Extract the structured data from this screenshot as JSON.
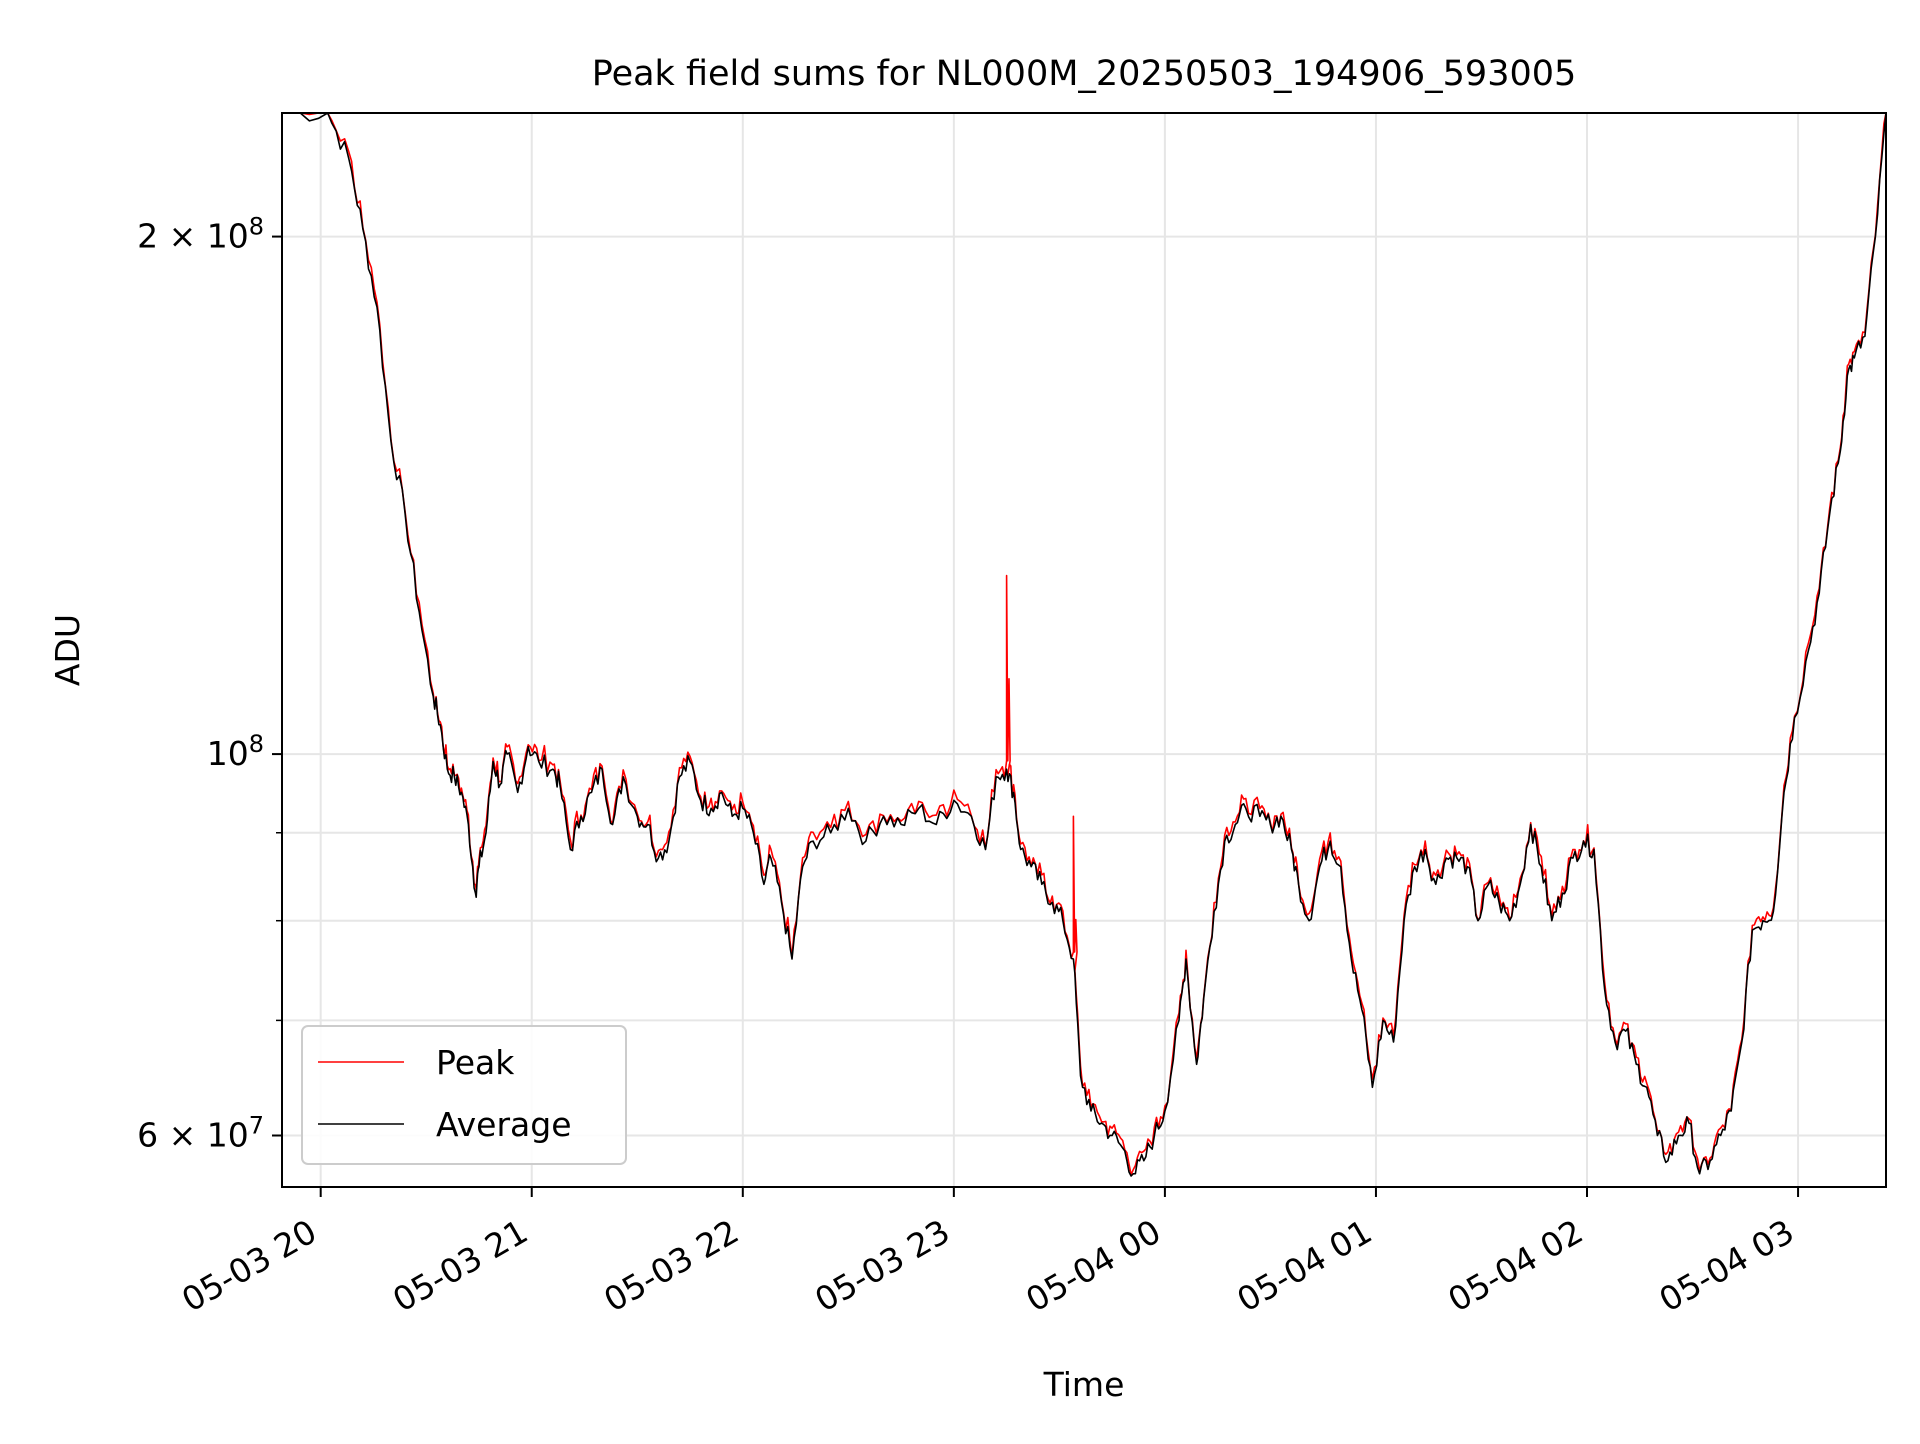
{
  "chart_data": {
    "type": "line",
    "title": "Peak field sums for NL000M_20250503_194906_593005",
    "xlabel": "Time",
    "ylabel": "ADU",
    "yscale": "log",
    "ylim": [
      56000000,
      236000000
    ],
    "xlim": [
      "2025-05-03 19:49",
      "2025-05-04 03:25"
    ],
    "x_ticks": [
      "2025-05-03 20:00",
      "2025-05-03 21:00",
      "2025-05-03 22:00",
      "2025-05-03 23:00",
      "2025-05-04 00:00",
      "2025-05-04 01:00",
      "2025-05-04 02:00",
      "2025-05-04 03:00"
    ],
    "x_tick_labels": [
      "05-03 20",
      "05-03 21",
      "05-03 22",
      "05-03 23",
      "05-04 00",
      "05-04 01",
      "05-04 02",
      "05-04 03"
    ],
    "y_major_ticks": [
      {
        "value": 60000000,
        "mantissa": "6",
        "exponent": "7",
        "times": "×",
        "base": "10"
      },
      {
        "value": 100000000,
        "mantissa": "",
        "exponent": "8",
        "times": "",
        "base": "10"
      },
      {
        "value": 200000000,
        "mantissa": "2",
        "exponent": "8",
        "times": "×",
        "base": "10"
      }
    ],
    "y_minor_ticks": [
      70000000,
      80000000,
      90000000
    ],
    "grid": true,
    "legend_position": "lower-left",
    "series": [
      {
        "name": "Peak",
        "color": "#ff0000",
        "spikes": [
          [
            "2025-05-03 23:15",
            127000000
          ],
          [
            "2025-05-03 23:34",
            92000000
          ]
        ]
      },
      {
        "name": "Average",
        "color": "#000000",
        "spikes": []
      }
    ],
    "x": [
      "2025-05-03 19:49",
      "2025-05-03 20:02",
      "2025-05-03 20:08",
      "2025-05-03 20:12",
      "2025-05-03 20:16",
      "2025-05-03 20:20",
      "2025-05-03 20:24",
      "2025-05-03 20:28",
      "2025-05-03 20:32",
      "2025-05-03 20:34",
      "2025-05-03 20:36",
      "2025-05-03 20:38",
      "2025-05-03 20:40",
      "2025-05-03 20:42",
      "2025-05-03 20:44",
      "2025-05-03 20:45",
      "2025-05-03 20:47",
      "2025-05-03 20:49",
      "2025-05-03 20:51",
      "2025-05-03 20:53",
      "2025-05-03 20:56",
      "2025-05-03 20:59",
      "2025-05-03 21:02",
      "2025-05-03 21:06",
      "2025-05-03 21:08",
      "2025-05-03 21:11",
      "2025-05-03 21:14",
      "2025-05-03 21:17",
      "2025-05-03 21:20",
      "2025-05-03 21:23",
      "2025-05-03 21:26",
      "2025-05-03 21:30",
      "2025-05-03 21:33",
      "2025-05-03 21:36",
      "2025-05-03 21:39",
      "2025-05-03 21:42",
      "2025-05-03 21:45",
      "2025-05-03 21:48",
      "2025-05-03 21:51",
      "2025-05-03 21:54",
      "2025-05-03 21:57",
      "2025-05-03 22:00",
      "2025-05-03 22:03",
      "2025-05-03 22:06",
      "2025-05-03 22:08",
      "2025-05-03 22:11",
      "2025-05-03 22:14",
      "2025-05-03 22:17",
      "2025-05-03 22:20",
      "2025-05-03 22:25",
      "2025-05-03 22:30",
      "2025-05-03 22:35",
      "2025-05-03 22:40",
      "2025-05-03 22:45",
      "2025-05-03 22:50",
      "2025-05-03 22:55",
      "2025-05-03 23:00",
      "2025-05-03 23:05",
      "2025-05-03 23:09",
      "2025-05-03 23:12",
      "2025-05-03 23:15",
      "2025-05-03 23:17",
      "2025-05-03 23:19",
      "2025-05-03 23:22",
      "2025-05-03 23:25",
      "2025-05-03 23:28",
      "2025-05-03 23:31",
      "2025-05-03 23:34",
      "2025-05-03 23:36",
      "2025-05-03 23:39",
      "2025-05-03 23:42",
      "2025-05-03 23:45",
      "2025-05-03 23:48",
      "2025-05-03 23:51",
      "2025-05-03 23:54",
      "2025-05-03 23:57",
      "2025-05-04 00:00",
      "2025-05-04 00:04",
      "2025-05-04 00:06",
      "2025-05-04 00:09",
      "2025-05-04 00:11",
      "2025-05-04 00:14",
      "2025-05-04 00:17",
      "2025-05-04 00:20",
      "2025-05-04 00:23",
      "2025-05-04 00:27",
      "2025-05-04 00:30",
      "2025-05-04 00:33",
      "2025-05-04 00:36",
      "2025-05-04 00:38",
      "2025-05-04 00:41",
      "2025-05-04 00:44",
      "2025-05-04 00:47",
      "2025-05-04 00:50",
      "2025-05-04 00:53",
      "2025-05-04 00:56",
      "2025-05-04 00:59",
      "2025-05-04 01:02",
      "2025-05-04 01:05",
      "2025-05-04 01:08",
      "2025-05-04 01:11",
      "2025-05-04 01:14",
      "2025-05-04 01:17",
      "2025-05-04 01:20",
      "2025-05-04 01:23",
      "2025-05-04 01:26",
      "2025-05-04 01:29",
      "2025-05-04 01:32",
      "2025-05-04 01:35",
      "2025-05-04 01:38",
      "2025-05-04 01:41",
      "2025-05-04 01:44",
      "2025-05-04 01:47",
      "2025-05-04 01:50",
      "2025-05-04 01:53",
      "2025-05-04 01:56",
      "2025-05-04 01:59",
      "2025-05-04 02:02",
      "2025-05-04 02:05",
      "2025-05-04 02:08",
      "2025-05-04 02:11",
      "2025-05-04 02:14",
      "2025-05-04 02:17",
      "2025-05-04 02:20",
      "2025-05-04 02:23",
      "2025-05-04 02:26",
      "2025-05-04 02:29",
      "2025-05-04 02:32",
      "2025-05-04 02:35",
      "2025-05-04 02:38",
      "2025-05-04 02:41",
      "2025-05-04 02:44",
      "2025-05-04 02:47",
      "2025-05-04 02:50",
      "2025-05-04 02:53",
      "2025-05-04 02:56",
      "2025-05-04 02:59",
      "2025-05-04 03:03",
      "2025-05-04 03:06",
      "2025-05-04 03:09",
      "2025-05-04 03:12",
      "2025-05-04 03:14",
      "2025-05-04 03:16",
      "2025-05-04 03:19",
      "2025-05-04 03:22",
      "2025-05-04 03:25"
    ],
    "y": [
      236000000,
      236000000,
      222000000,
      202000000,
      182000000,
      152000000,
      138000000,
      121000000,
      108000000,
      104000000,
      98000000,
      97000000,
      95000000,
      91000000,
      83000000,
      86000000,
      90000000,
      99000000,
      96000000,
      100000000,
      95000000,
      101000000,
      99000000,
      98000000,
      96000000,
      88000000,
      92000000,
      95000000,
      98000000,
      91000000,
      97000000,
      92000000,
      91000000,
      87000000,
      89000000,
      97000000,
      99000000,
      94000000,
      93000000,
      95000000,
      92000000,
      93000000,
      90000000,
      84000000,
      87000000,
      82000000,
      76000000,
      86000000,
      89000000,
      90000000,
      93000000,
      89000000,
      92000000,
      91000000,
      93000000,
      91000000,
      94000000,
      92000000,
      88000000,
      97000000,
      98000000,
      95000000,
      88000000,
      86000000,
      84000000,
      82000000,
      80000000,
      76000000,
      65000000,
      62000000,
      61000000,
      60000000,
      59000000,
      57000000,
      58000000,
      60000000,
      62000000,
      70000000,
      76000000,
      66000000,
      72000000,
      81000000,
      89000000,
      91000000,
      93000000,
      92000000,
      91000000,
      92000000,
      88000000,
      84000000,
      80000000,
      86000000,
      89000000,
      86000000,
      76000000,
      71000000,
      64000000,
      70000000,
      68000000,
      80000000,
      86000000,
      88000000,
      84000000,
      87000000,
      87000000,
      86000000,
      80000000,
      84000000,
      82000000,
      80000000,
      84000000,
      91000000,
      86000000,
      80000000,
      83000000,
      87000000,
      89000000,
      88000000,
      73000000,
      68000000,
      69000000,
      66000000,
      64000000,
      60000000,
      58000000,
      60000000,
      61000000,
      57000000,
      58000000,
      60000000,
      62000000,
      68000000,
      79000000,
      80000000,
      81000000,
      95000000,
      105000000,
      115000000,
      124000000,
      138000000,
      150000000,
      166000000,
      170000000,
      175000000,
      200000000,
      236000000
    ]
  }
}
